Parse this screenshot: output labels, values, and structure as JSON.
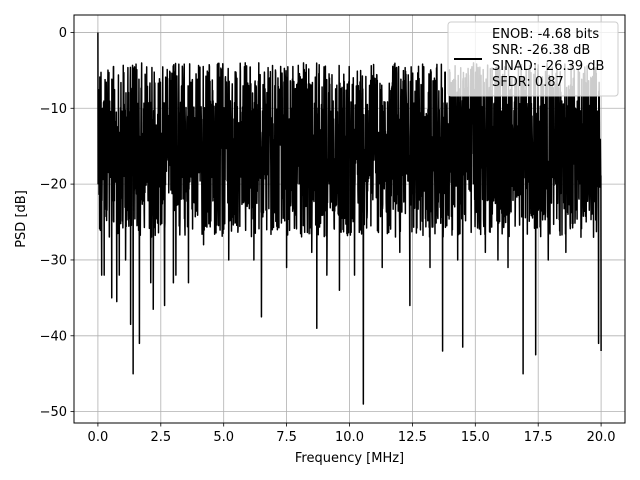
{
  "chart_data": {
    "type": "line",
    "xlabel": "Frequency [MHz]",
    "ylabel": "PSD [dB]",
    "xlim": [
      -0.95,
      20.95
    ],
    "ylim": [
      -51.5,
      2.3
    ],
    "x_ticks": [
      0.0,
      2.5,
      5.0,
      7.5,
      10.0,
      12.5,
      15.0,
      17.5,
      20.0
    ],
    "x_tick_labels": [
      "0.0",
      "2.5",
      "5.0",
      "7.5",
      "10.0",
      "12.5",
      "15.0",
      "17.5",
      "20.0"
    ],
    "y_ticks": [
      0,
      -10,
      -20,
      -30,
      -40,
      -50
    ],
    "y_tick_labels": [
      "0",
      "−10",
      "−20",
      "−30",
      "−40",
      "−50"
    ],
    "grid": true,
    "legend_placement": "upper right",
    "series": [
      {
        "name": "ENOB: -4.68 bits\nSNR: -26.38 dB\nSINAD: -26.39 dB\nSFDR: 0.87",
        "color": "#000000",
        "description": "Noise-like power spectral density spanning 0 to 20 MHz; upper envelope near -5 dB, bulk between -8 and -25 dB, peak of 0 dB at 0 MHz.",
        "x_range": [
          0.0,
          20.0
        ],
        "upper_envelope_db": -4,
        "lower_band_db": -25,
        "peak": {
          "x": 0.0,
          "y": 0.0
        },
        "deep_notches": [
          {
            "x": 0.15,
            "y": -32
          },
          {
            "x": 0.25,
            "y": -32
          },
          {
            "x": 0.55,
            "y": -35
          },
          {
            "x": 0.75,
            "y": -35.5
          },
          {
            "x": 0.85,
            "y": -32
          },
          {
            "x": 1.1,
            "y": -30
          },
          {
            "x": 1.3,
            "y": -38.5
          },
          {
            "x": 1.4,
            "y": -45
          },
          {
            "x": 1.65,
            "y": -41
          },
          {
            "x": 2.1,
            "y": -33
          },
          {
            "x": 2.2,
            "y": -36.5
          },
          {
            "x": 2.65,
            "y": -36
          },
          {
            "x": 3.0,
            "y": -33
          },
          {
            "x": 3.1,
            "y": -32
          },
          {
            "x": 3.6,
            "y": -33
          },
          {
            "x": 4.2,
            "y": -28
          },
          {
            "x": 5.2,
            "y": -30
          },
          {
            "x": 6.2,
            "y": -30
          },
          {
            "x": 6.5,
            "y": -37.5
          },
          {
            "x": 7.5,
            "y": -31
          },
          {
            "x": 8.5,
            "y": -29
          },
          {
            "x": 8.7,
            "y": -39
          },
          {
            "x": 9.1,
            "y": -32
          },
          {
            "x": 9.6,
            "y": -34
          },
          {
            "x": 10.2,
            "y": -32
          },
          {
            "x": 10.55,
            "y": -49
          },
          {
            "x": 11.3,
            "y": -31
          },
          {
            "x": 12.0,
            "y": -29
          },
          {
            "x": 12.4,
            "y": -36
          },
          {
            "x": 13.2,
            "y": -31
          },
          {
            "x": 13.7,
            "y": -42
          },
          {
            "x": 14.3,
            "y": -30
          },
          {
            "x": 14.5,
            "y": -41.5
          },
          {
            "x": 15.4,
            "y": -29
          },
          {
            "x": 15.9,
            "y": -30
          },
          {
            "x": 16.3,
            "y": -31
          },
          {
            "x": 16.9,
            "y": -45
          },
          {
            "x": 17.4,
            "y": -42.5
          },
          {
            "x": 17.9,
            "y": -30
          },
          {
            "x": 18.6,
            "y": -29
          },
          {
            "x": 19.2,
            "y": -27
          },
          {
            "x": 19.7,
            "y": -27
          },
          {
            "x": 19.9,
            "y": -41
          },
          {
            "x": 20.0,
            "y": -42
          }
        ]
      }
    ]
  }
}
